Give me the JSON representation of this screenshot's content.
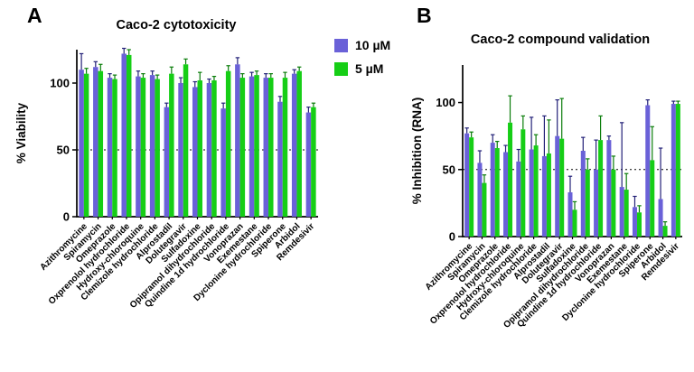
{
  "figure": {
    "panelA": {
      "panel_label": "A",
      "title": "Caco-2 cytotoxicity"
    },
    "panelB": {
      "panel_label": "B",
      "title": "Caco-2 compound validation"
    },
    "legend": [
      {
        "label": "10 µM",
        "color": "#6A61D8"
      },
      {
        "label": "5 µM",
        "color": "#16CE16"
      }
    ]
  },
  "chart_data": [
    {
      "type": "bar",
      "panel": "A",
      "title": "Caco-2 cytotoxicity",
      "ylabel": "% Viability",
      "ylim": [
        0,
        125
      ],
      "yticks": [
        0,
        50,
        100
      ],
      "reference_line": 50,
      "grid": false,
      "legend_position": "right-of-panel",
      "categories": [
        "Azithromycine",
        "Spiramycin",
        "Omeprazole",
        "Oxprenolol hydrochloride",
        "Hydroxy-chloroquine",
        "Clemizole hydrochloride",
        "Alprostadil",
        "Dolutegravir",
        "Sulfadoxine",
        "Opipramol dihydrochloride",
        "Quindine 1d hydrochloride",
        "Vonoprazan",
        "Exemestane",
        "Dyclonine hydrochloride",
        "Spiperone",
        "Arbidol",
        "Remdesivir"
      ],
      "series": [
        {
          "name": "10 µM",
          "color": "#6A61D8",
          "error_color": "#232178",
          "values": [
            110,
            112,
            104,
            122,
            105,
            106,
            82,
            100,
            97,
            100,
            81,
            114,
            105,
            104,
            86,
            107,
            78
          ],
          "errors": [
            12,
            4,
            3,
            4,
            4,
            3,
            3,
            4,
            4,
            3,
            4,
            5,
            3,
            3,
            4,
            3,
            4
          ]
        },
        {
          "name": "5 µM",
          "color": "#16CE16",
          "error_color": "#0a7d0a",
          "values": [
            107,
            109,
            103,
            121,
            104,
            103,
            107,
            114,
            102,
            102,
            109,
            104,
            106,
            104,
            104,
            109,
            82
          ],
          "errors": [
            4,
            5,
            3,
            4,
            3,
            3,
            5,
            4,
            6,
            3,
            4,
            3,
            3,
            3,
            4,
            3,
            3
          ]
        }
      ]
    },
    {
      "type": "bar",
      "panel": "B",
      "title": "Caco-2 compound validation",
      "ylabel": "% Inhibition (RNA)",
      "ylim": [
        0,
        128
      ],
      "yticks": [
        0,
        50,
        100
      ],
      "reference_line": 50,
      "grid": false,
      "categories": [
        "Azithromycine",
        "Spiramycin",
        "Omeprazole",
        "Oxprenolol hydrochloride",
        "Hydroxy-chloroquine",
        "Clemizole hydrochloride",
        "Alprostadil",
        "Dolutegravir",
        "Sulfadoxine",
        "Opipramol dihydrochloride",
        "Quindine 1d hydrochloride",
        "Vonoprazan",
        "Exemestane",
        "Dyclonine hydrochloride",
        "Spiperone",
        "Arbidol",
        "Remdesivir"
      ],
      "series": [
        {
          "name": "10 µM",
          "color": "#6A61D8",
          "error_color": "#232178",
          "values": [
            77,
            55,
            70,
            63,
            56,
            65,
            60,
            75,
            33,
            64,
            50,
            72,
            37,
            22,
            98,
            28,
            99
          ],
          "errors": [
            4,
            9,
            6,
            5,
            9,
            24,
            30,
            27,
            12,
            10,
            22,
            3,
            48,
            8,
            4,
            38,
            2
          ]
        },
        {
          "name": "5 µM",
          "color": "#16CE16",
          "error_color": "#0a7d0a",
          "values": [
            74,
            40,
            66,
            85,
            80,
            68,
            62,
            73,
            20,
            50,
            72,
            50,
            35,
            18,
            57,
            8,
            99
          ],
          "errors": [
            4,
            6,
            5,
            20,
            10,
            8,
            25,
            30,
            6,
            8,
            18,
            10,
            12,
            5,
            25,
            3,
            2
          ]
        }
      ]
    }
  ]
}
